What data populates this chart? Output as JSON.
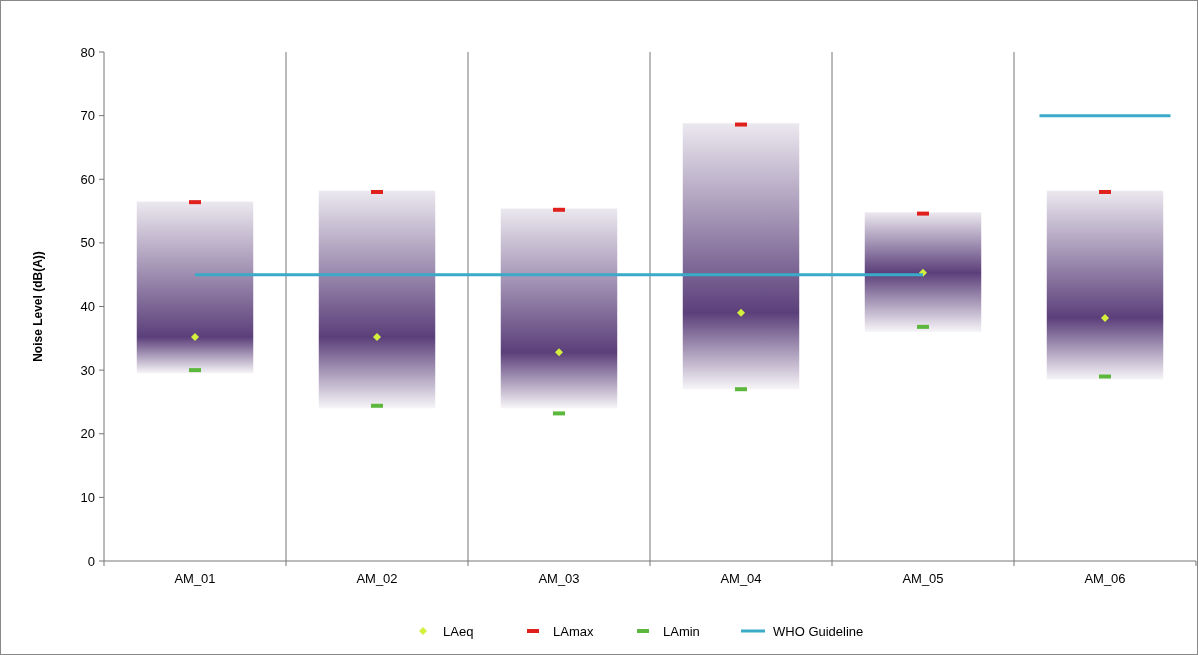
{
  "chart_data": {
    "type": "bar",
    "ylabel": "Noise Level (dB(A))",
    "categories": [
      "AM_01",
      "AM_02",
      "AM_03",
      "AM_04",
      "AM_05",
      "AM_06"
    ],
    "ylim": [
      0,
      80
    ],
    "yticks": [
      0,
      10,
      20,
      30,
      40,
      50,
      60,
      70,
      80
    ],
    "grid": "x",
    "legend": "bottom",
    "series": [
      {
        "color": "#5b3f7a",
        "base": [
          29.5,
          24,
          24,
          27,
          36,
          28.5
        ],
        "values": [
          27,
          34.2,
          31.4,
          41.8,
          18.8,
          29.7
        ]
      },
      {
        "type": "scatter",
        "name": "LAeq",
        "color": "#d4f03c",
        "marker": "diamond",
        "values": [
          35.2,
          35.2,
          32.8,
          39,
          45.3,
          38.2
        ]
      },
      {
        "type": "scatter",
        "name": "LAmax",
        "color": "#e0201c",
        "marker": "square",
        "values": [
          56.4,
          58,
          55.2,
          68.6,
          54.6,
          58
        ]
      },
      {
        "type": "scatter",
        "name": "LAmin",
        "color": "#5cb83c",
        "marker": "square",
        "values": [
          30,
          24.4,
          23.2,
          27,
          36.8,
          29
        ]
      },
      {
        "type": "line",
        "name": "WHO Guideline",
        "color": "#3aaac8",
        "values": [
          45,
          45,
          45,
          45,
          45,
          null
        ]
      }
    ],
    "ref_lines": [
      {
        "axis": "y",
        "value": 70,
        "color": "#3aaac8"
      }
    ]
  }
}
